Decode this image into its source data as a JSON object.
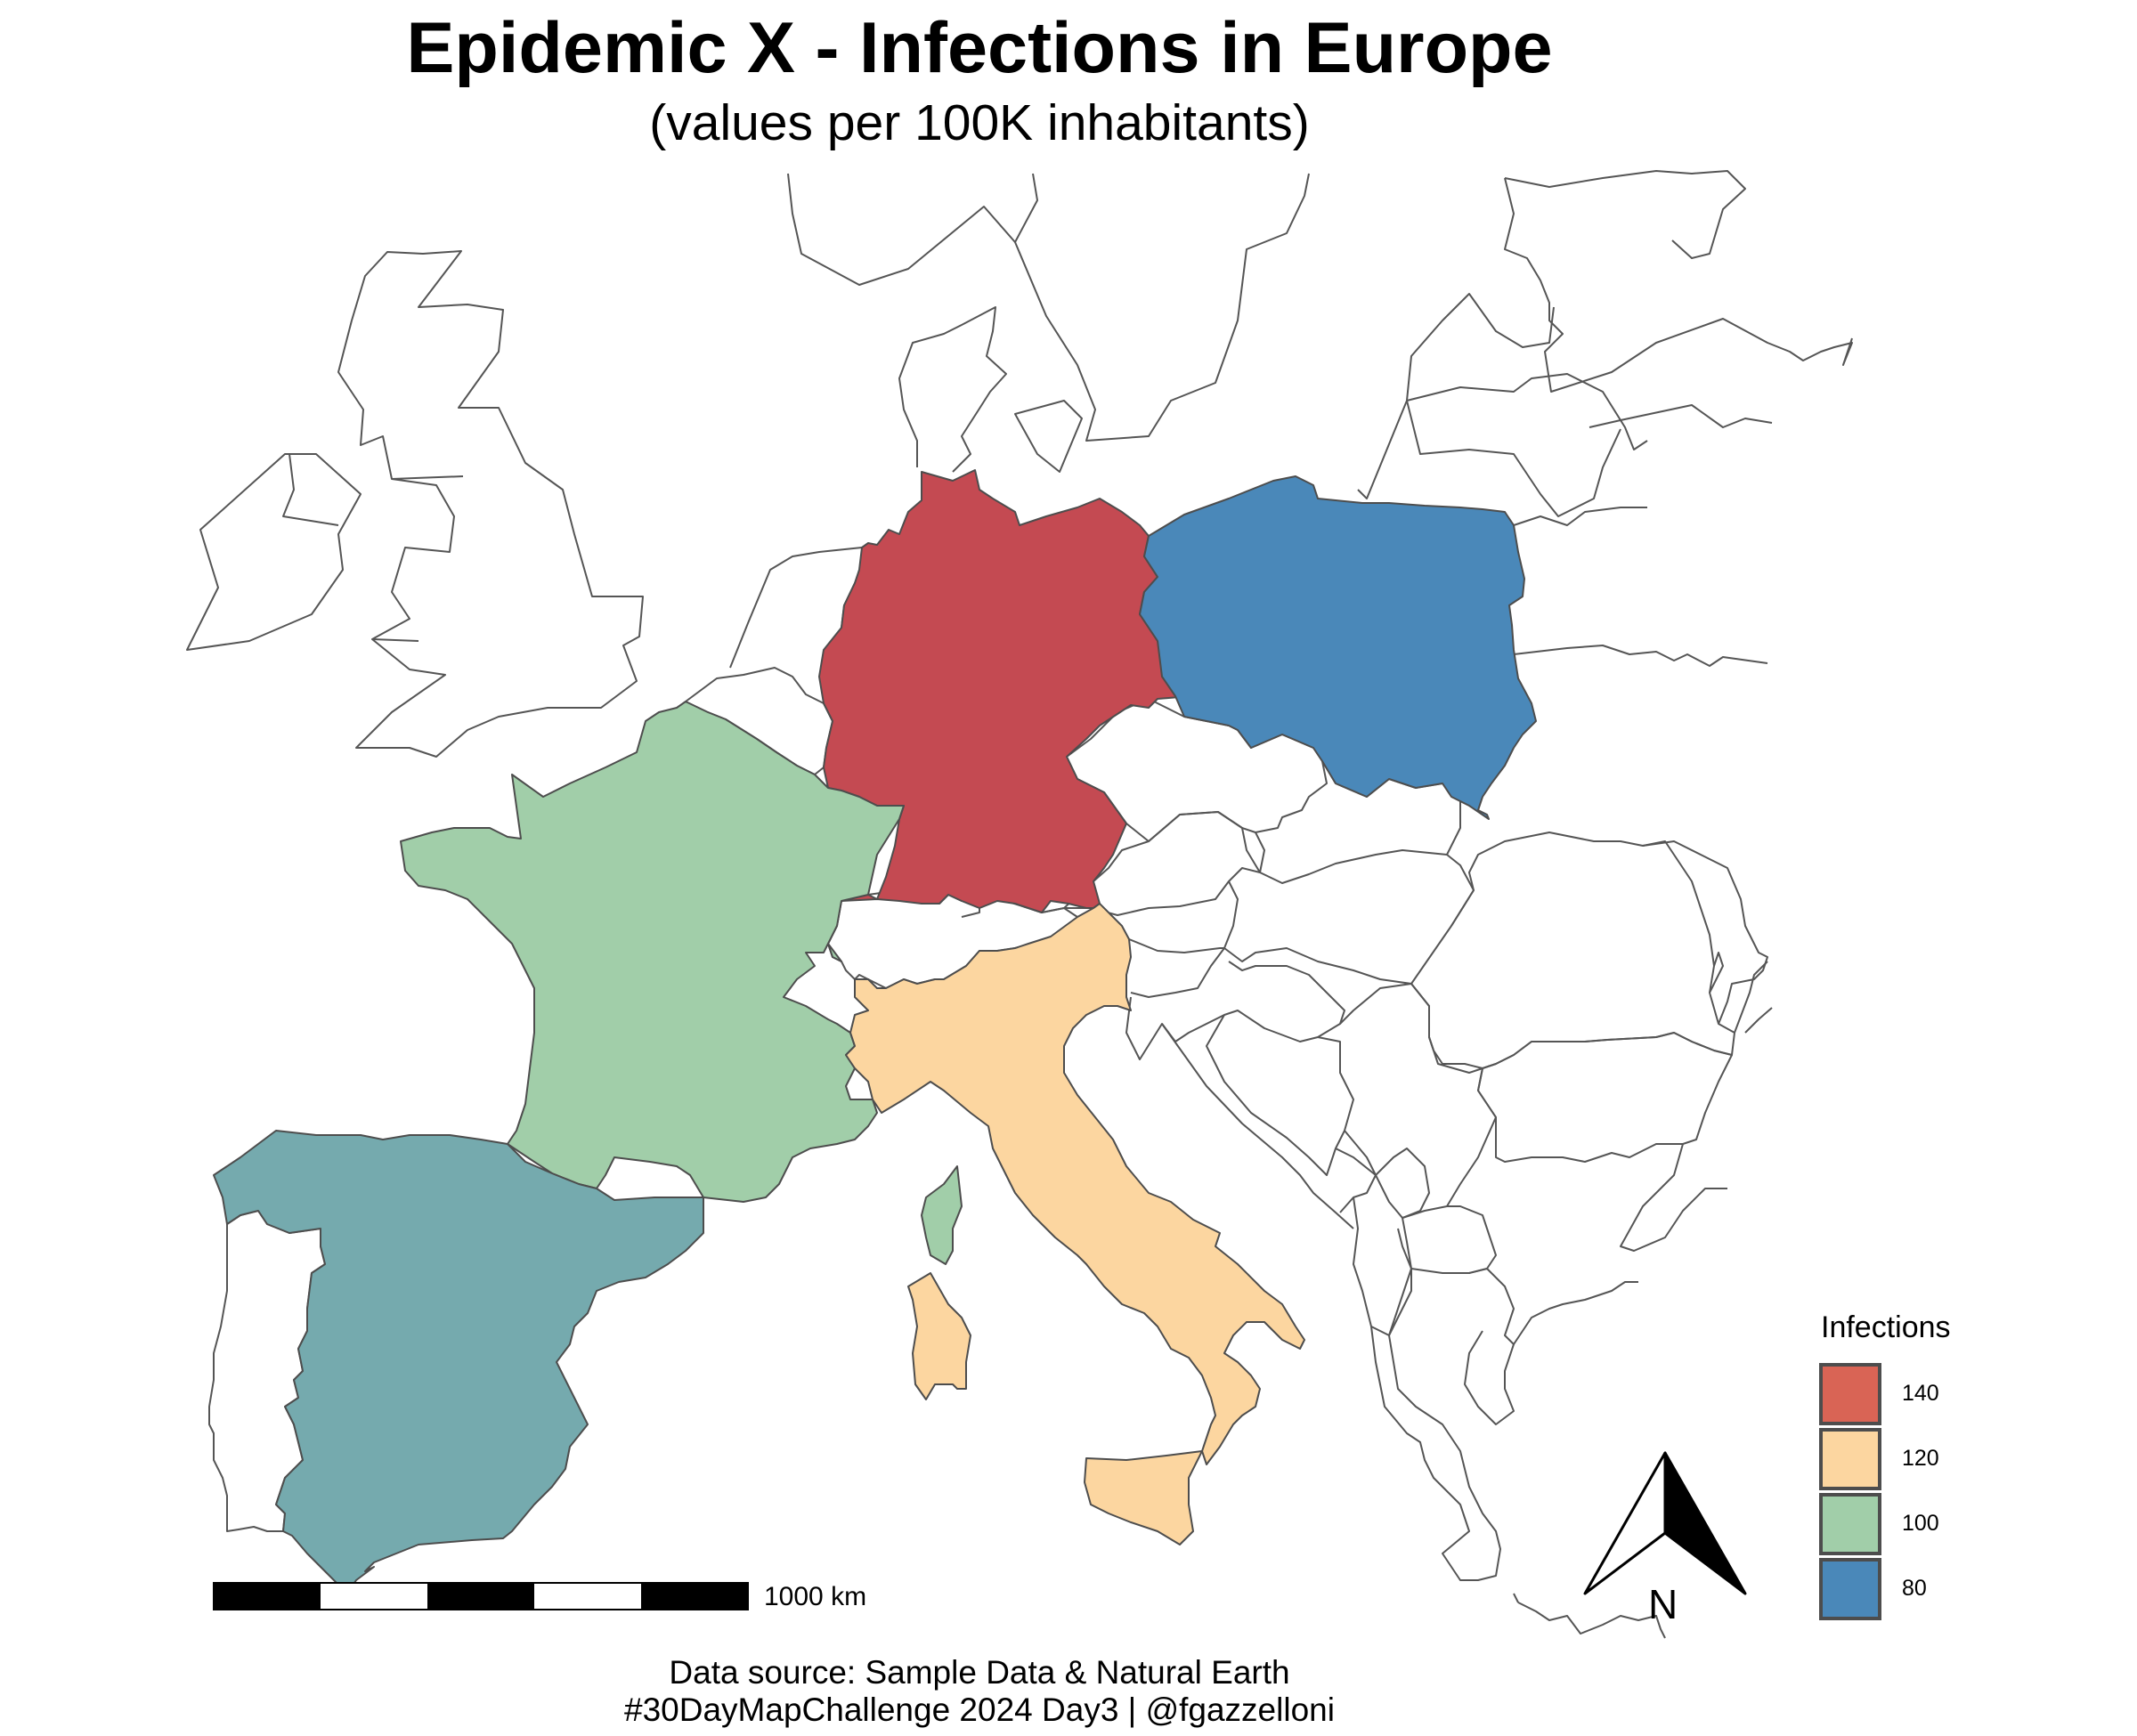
{
  "title": "Epidemic X - Infections in Europe",
  "subtitle": "(values per 100K inhabitants)",
  "legend": {
    "title": "Infections",
    "items": [
      {
        "label": "140",
        "color": "#D96455"
      },
      {
        "label": "120",
        "color": "#FCD6A0"
      },
      {
        "label": "100",
        "color": "#A1CEA9"
      },
      {
        "label": "80",
        "color": "#4A88B9"
      }
    ]
  },
  "countries": [
    {
      "name": "Germany",
      "infections": 140,
      "color": "#C44A52"
    },
    {
      "name": "Italy",
      "infections": 120,
      "color": "#FCD6A0"
    },
    {
      "name": "France",
      "infections": 100,
      "color": "#A1CEA9"
    },
    {
      "name": "Poland",
      "infections": 80,
      "color": "#4A88B9"
    },
    {
      "name": "Spain",
      "color": "#75AAAE"
    }
  ],
  "scale_bar": {
    "label": "1000 km"
  },
  "north_arrow": {
    "label": "N"
  },
  "caption": {
    "line1": "Data source: Sample Data & Natural Earth",
    "line2": "#30DayMapChallenge 2024 Day3 | @fgazzelloni"
  }
}
